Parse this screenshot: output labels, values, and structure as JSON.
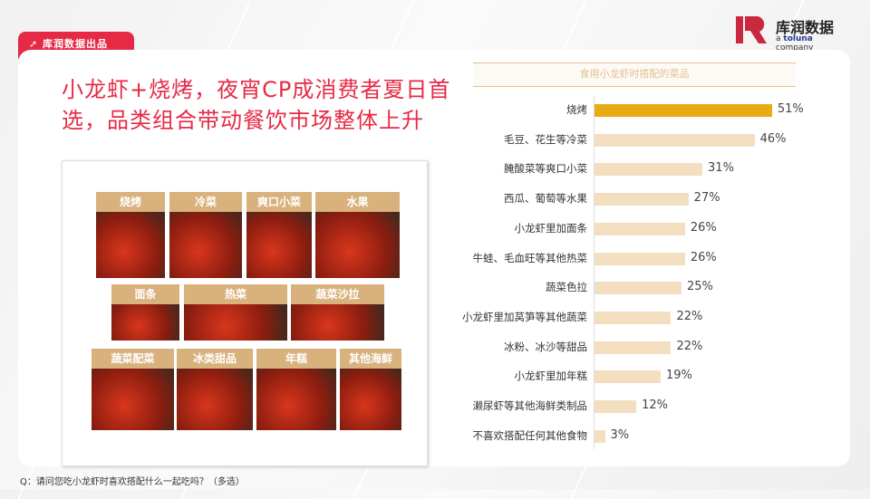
{
  "tag": "库润数据出品",
  "logo": {
    "cn": "库润数据",
    "en_prefix": "a ",
    "en_brand": "toluna",
    "en_suffix": " company"
  },
  "title_line1": "小龙虾+烧烤，夜宵CP成消费者夏日首",
  "title_line2": "选，品类组合带动餐饮市场整体上升",
  "tiles": [
    "烧烤",
    "冷菜",
    "爽口小菜",
    "水果",
    "面条",
    "热菜",
    "蔬菜沙拉",
    "蔬菜配菜",
    "冰类甜品",
    "年糕",
    "其他海鲜"
  ],
  "footnote": "Q：请问您吃小龙虾时喜欢搭配什么一起吃吗？（多选）",
  "chart_data": {
    "type": "bar",
    "orientation": "horizontal",
    "title": "食用小龙虾时搭配的菜品",
    "categories": [
      "烧烤",
      "毛豆、花生等冷菜",
      "腌酸菜等爽口小菜",
      "西瓜、葡萄等水果",
      "小龙虾里加面条",
      "牛蛙、毛血旺等其他热菜",
      "蔬菜色拉",
      "小龙虾里加莴笋等其他蔬菜",
      "冰粉、冰沙等甜品",
      "小龙虾里加年糕",
      "濑尿虾等其他海鲜类制品",
      "不喜欢搭配任何其他食物"
    ],
    "values": [
      51,
      46,
      31,
      27,
      26,
      26,
      25,
      22,
      22,
      19,
      12,
      3
    ],
    "labels": [
      "51%",
      "46%",
      "31%",
      "27%",
      "26%",
      "26%",
      "25%",
      "22%",
      "22%",
      "19%",
      "12%",
      "3%"
    ],
    "colors": {
      "highlight": "#e8ab14",
      "default": "#f3dfc0"
    }
  }
}
